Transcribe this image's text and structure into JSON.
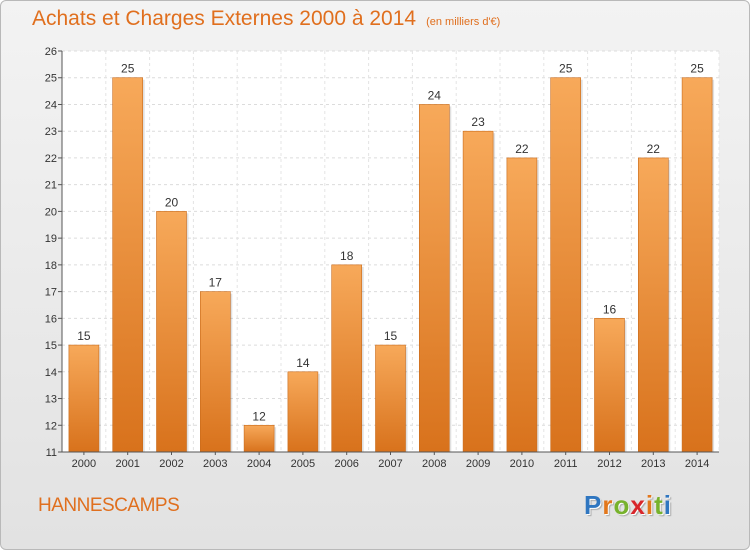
{
  "header": {
    "title": "Achats et Charges Externes 2000 à 2014",
    "unit": "(en milliers d'€)"
  },
  "footer": {
    "place": "HANNESCAMPS",
    "logo_letters": [
      "P",
      "r",
      "o",
      "x",
      "i",
      "t",
      "i"
    ]
  },
  "colors": {
    "accent": "#e06f1e",
    "bar_light": "#f7a95a",
    "bar_dark": "#d8721c",
    "logo_letters": [
      "#2f76c0",
      "#e2771c",
      "#77b22c",
      "#d8262b",
      "#e2771c",
      "#77b22c",
      "#2f76c0"
    ]
  },
  "chart_data": {
    "type": "bar",
    "title": "Achats et Charges Externes 2000 à 2014",
    "subtitle": "(en milliers d'€)",
    "categories": [
      "2000",
      "2001",
      "2002",
      "2003",
      "2004",
      "2005",
      "2006",
      "2007",
      "2008",
      "2009",
      "2010",
      "2011",
      "2012",
      "2013",
      "2014"
    ],
    "values": [
      15,
      25,
      20,
      17,
      12,
      14,
      18,
      15,
      24,
      23,
      22,
      25,
      16,
      22,
      25
    ],
    "xlabel": "",
    "ylabel": "",
    "ylim": [
      11,
      26
    ],
    "yticks": [
      11,
      12,
      13,
      14,
      15,
      16,
      17,
      18,
      19,
      20,
      21,
      22,
      23,
      24,
      25,
      26
    ],
    "grid": true,
    "data_labels": true,
    "legend": "none"
  }
}
